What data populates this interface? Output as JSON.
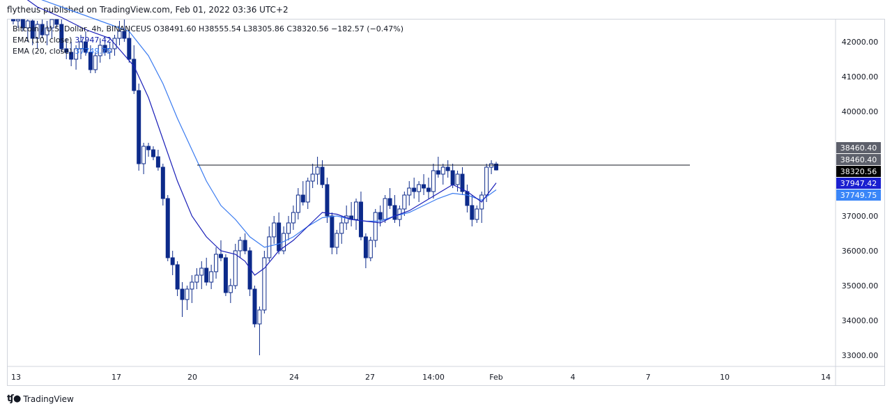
{
  "header": {
    "publisher_line": "flytheus published on TradingView.com, Feb 01, 2022 03:36 UTC+2"
  },
  "legend": {
    "symbol_line": "Bitcoin / U.S. Dollar, 4h, BINANCEUS  O38491.60  H38555.54  L38305.86  C38320.56  −182.57 (−0.47%)",
    "ema10_label": "EMA (10, close)",
    "ema10_value": "37947.42",
    "ema20_label": "EMA (20, close)",
    "ema20_value": "37749.75"
  },
  "footer": {
    "brand": "TradingView"
  },
  "colors": {
    "up_body": "#ffffff",
    "down_body": "#0c2a8a",
    "wick": "#0c2a8a",
    "ema10": "#1a1fb8",
    "ema20": "#3a7bf0",
    "grid_border": "#d1d4dc",
    "hline": "#131722",
    "price_tag_gray": "#5d606b",
    "price_tag_black": "#000000",
    "price_tag_ema10": "#1a1fd0",
    "price_tag_ema20": "#3a86f8"
  },
  "chart_data": {
    "type": "candlestick",
    "title": "Bitcoin / U.S. Dollar, 4h, BINANCEUS",
    "y_axis": {
      "ticks": [
        "42000.00",
        "41000.00",
        "40000.00",
        "37000.00",
        "36000.00",
        "35000.00",
        "34000.00",
        "33000.00"
      ],
      "tick_values": [
        42000,
        41000,
        40000,
        37000,
        36000,
        35000,
        34000,
        33000
      ],
      "range": [
        32700,
        43000
      ]
    },
    "x_axis": {
      "ticks": [
        "13",
        "17",
        "20",
        "24",
        "27",
        "14:00",
        "Feb",
        "4",
        "7",
        "10",
        "14"
      ]
    },
    "horizontal_line": 38460.4,
    "price_labels": [
      {
        "text": "38460.40",
        "value": 38460.4,
        "style": "gray",
        "offset": "up"
      },
      {
        "text": "38460.40",
        "value": 38460.4,
        "style": "gray",
        "offset": "none"
      },
      {
        "text": "38320.56",
        "value": 38320.56,
        "style": "black",
        "offset": "none"
      },
      {
        "text": "37947.42",
        "value": 37947.42,
        "style": "ema10",
        "offset": "none"
      },
      {
        "text": "37749.75",
        "value": 37749.75,
        "style": "ema20",
        "offset": "none"
      }
    ],
    "candles": [
      [
        43200,
        43300,
        42500,
        42600
      ],
      [
        42600,
        42800,
        42400,
        42700
      ],
      [
        42700,
        42900,
        42300,
        42400
      ],
      [
        42400,
        42700,
        42000,
        42600
      ],
      [
        42600,
        42900,
        41900,
        42100
      ],
      [
        42100,
        42600,
        41800,
        42500
      ],
      [
        42500,
        42700,
        42100,
        42200
      ],
      [
        42200,
        42600,
        41900,
        42400
      ],
      [
        42400,
        42800,
        42100,
        42700
      ],
      [
        42700,
        43000,
        42400,
        42500
      ],
      [
        42500,
        42700,
        41700,
        41800
      ],
      [
        41800,
        42100,
        41500,
        41700
      ],
      [
        41700,
        42000,
        41300,
        41500
      ],
      [
        41500,
        41900,
        41200,
        41800
      ],
      [
        41800,
        42200,
        41500,
        42000
      ],
      [
        42000,
        42300,
        41600,
        41700
      ],
      [
        41700,
        41900,
        41100,
        41200
      ],
      [
        41200,
        41700,
        41100,
        41600
      ],
      [
        41600,
        42100,
        41400,
        41900
      ],
      [
        41900,
        42100,
        41600,
        41700
      ],
      [
        41700,
        42000,
        41500,
        41800
      ],
      [
        41800,
        42200,
        41600,
        42100
      ],
      [
        42100,
        42600,
        41900,
        42300
      ],
      [
        42300,
        42800,
        42000,
        42100
      ],
      [
        42100,
        42300,
        41400,
        41500
      ],
      [
        41500,
        41900,
        40500,
        40600
      ],
      [
        40600,
        40800,
        38300,
        38500
      ],
      [
        38500,
        39100,
        38200,
        39000
      ],
      [
        39000,
        39100,
        38700,
        38900
      ],
      [
        38900,
        39000,
        38600,
        38700
      ],
      [
        38700,
        38900,
        38300,
        38400
      ],
      [
        38400,
        38500,
        37300,
        37500
      ],
      [
        37500,
        37600,
        35700,
        35800
      ],
      [
        35800,
        36000,
        35300,
        35600
      ],
      [
        35600,
        35700,
        34700,
        34900
      ],
      [
        34900,
        35100,
        34100,
        34600
      ],
      [
        34600,
        35000,
        34300,
        34900
      ],
      [
        34900,
        35300,
        34500,
        35100
      ],
      [
        35100,
        35500,
        34900,
        35300
      ],
      [
        35300,
        35700,
        34900,
        35500
      ],
      [
        35500,
        35800,
        35000,
        35100
      ],
      [
        35100,
        35600,
        34900,
        35400
      ],
      [
        35400,
        36100,
        35200,
        35900
      ],
      [
        35900,
        36300,
        35700,
        35800
      ],
      [
        35800,
        35900,
        34700,
        34800
      ],
      [
        34800,
        35200,
        34500,
        35000
      ],
      [
        35000,
        36200,
        34900,
        36000
      ],
      [
        36000,
        36400,
        35800,
        36300
      ],
      [
        36300,
        36500,
        35900,
        36000
      ],
      [
        36000,
        36100,
        34700,
        34900
      ],
      [
        34900,
        35000,
        33800,
        33900
      ],
      [
        33900,
        34400,
        33000,
        34300
      ],
      [
        34300,
        36000,
        34200,
        35800
      ],
      [
        35800,
        36700,
        35700,
        36400
      ],
      [
        36400,
        37000,
        36200,
        36800
      ],
      [
        36800,
        37100,
        35900,
        36000
      ],
      [
        36000,
        36700,
        35900,
        36500
      ],
      [
        36500,
        37000,
        36300,
        36800
      ],
      [
        36800,
        37300,
        36600,
        37100
      ],
      [
        37100,
        37800,
        36900,
        37600
      ],
      [
        37600,
        38000,
        37300,
        37400
      ],
      [
        37400,
        38100,
        37200,
        38000
      ],
      [
        38000,
        38500,
        37800,
        38200
      ],
      [
        38200,
        38700,
        37900,
        38400
      ],
      [
        38400,
        38600,
        37800,
        37900
      ],
      [
        37900,
        38100,
        36800,
        37000
      ],
      [
        37000,
        37100,
        35900,
        36100
      ],
      [
        36100,
        36600,
        35900,
        36500
      ],
      [
        36500,
        37000,
        36200,
        36800
      ],
      [
        36800,
        37300,
        36600,
        37000
      ],
      [
        37000,
        37400,
        36700,
        36900
      ],
      [
        36900,
        37500,
        36600,
        37400
      ],
      [
        37400,
        37700,
        36300,
        36400
      ],
      [
        36400,
        36500,
        35500,
        35800
      ],
      [
        35800,
        36400,
        35700,
        36300
      ],
      [
        36300,
        37200,
        36100,
        37100
      ],
      [
        37100,
        37300,
        36700,
        36900
      ],
      [
        36900,
        37600,
        36800,
        37500
      ],
      [
        37500,
        37800,
        37200,
        37300
      ],
      [
        37300,
        37600,
        36800,
        36900
      ],
      [
        36900,
        37300,
        36700,
        37200
      ],
      [
        37200,
        37700,
        37000,
        37600
      ],
      [
        37600,
        38000,
        37300,
        37800
      ],
      [
        37800,
        38100,
        37500,
        37700
      ],
      [
        37700,
        38000,
        37400,
        37900
      ],
      [
        37900,
        38200,
        37600,
        37800
      ],
      [
        37800,
        38100,
        37500,
        37700
      ],
      [
        37700,
        38500,
        37500,
        38300
      ],
      [
        38300,
        38700,
        38100,
        38200
      ],
      [
        38200,
        38500,
        37900,
        38400
      ],
      [
        38400,
        38600,
        38100,
        38300
      ],
      [
        38300,
        38500,
        37800,
        37900
      ],
      [
        37900,
        38300,
        37700,
        38200
      ],
      [
        38200,
        38400,
        37600,
        37700
      ],
      [
        37700,
        37900,
        37100,
        37300
      ],
      [
        37300,
        37600,
        36700,
        36900
      ],
      [
        36900,
        37300,
        36800,
        37200
      ],
      [
        37200,
        37700,
        36800,
        37600
      ],
      [
        37600,
        38500,
        37400,
        38400
      ],
      [
        38400,
        38600,
        38200,
        38500
      ],
      [
        38491.6,
        38555.54,
        38305.86,
        38320.56
      ]
    ],
    "ema10": [
      [
        0,
        43500
      ],
      [
        5,
        43000
      ],
      [
        10,
        42700
      ],
      [
        15,
        42350
      ],
      [
        20,
        42100
      ],
      [
        25,
        41300
      ],
      [
        28,
        40400
      ],
      [
        31,
        39200
      ],
      [
        34,
        38000
      ],
      [
        37,
        37000
      ],
      [
        40,
        36400
      ],
      [
        43,
        36000
      ],
      [
        46,
        35900
      ],
      [
        48,
        35700
      ],
      [
        50,
        35300
      ],
      [
        52,
        35500
      ],
      [
        55,
        36000
      ],
      [
        58,
        36300
      ],
      [
        61,
        36700
      ],
      [
        64,
        37100
      ],
      [
        67,
        37050
      ],
      [
        70,
        36900
      ],
      [
        73,
        36850
      ],
      [
        76,
        36800
      ],
      [
        79,
        37000
      ],
      [
        82,
        37150
      ],
      [
        85,
        37400
      ],
      [
        88,
        37650
      ],
      [
        91,
        37900
      ],
      [
        94,
        37700
      ],
      [
        97,
        37400
      ],
      [
        100,
        37947
      ]
    ],
    "ema20": [
      [
        0,
        43600
      ],
      [
        6,
        43200
      ],
      [
        12,
        42900
      ],
      [
        18,
        42600
      ],
      [
        24,
        42300
      ],
      [
        28,
        41600
      ],
      [
        31,
        40800
      ],
      [
        34,
        39800
      ],
      [
        37,
        38900
      ],
      [
        40,
        38000
      ],
      [
        43,
        37300
      ],
      [
        46,
        36900
      ],
      [
        49,
        36400
      ],
      [
        52,
        36100
      ],
      [
        55,
        36200
      ],
      [
        58,
        36400
      ],
      [
        61,
        36700
      ],
      [
        64,
        36950
      ],
      [
        67,
        37000
      ],
      [
        70,
        36900
      ],
      [
        73,
        36850
      ],
      [
        76,
        36850
      ],
      [
        79,
        37000
      ],
      [
        82,
        37100
      ],
      [
        85,
        37300
      ],
      [
        88,
        37500
      ],
      [
        91,
        37650
      ],
      [
        94,
        37600
      ],
      [
        97,
        37450
      ],
      [
        100,
        37750
      ]
    ]
  }
}
